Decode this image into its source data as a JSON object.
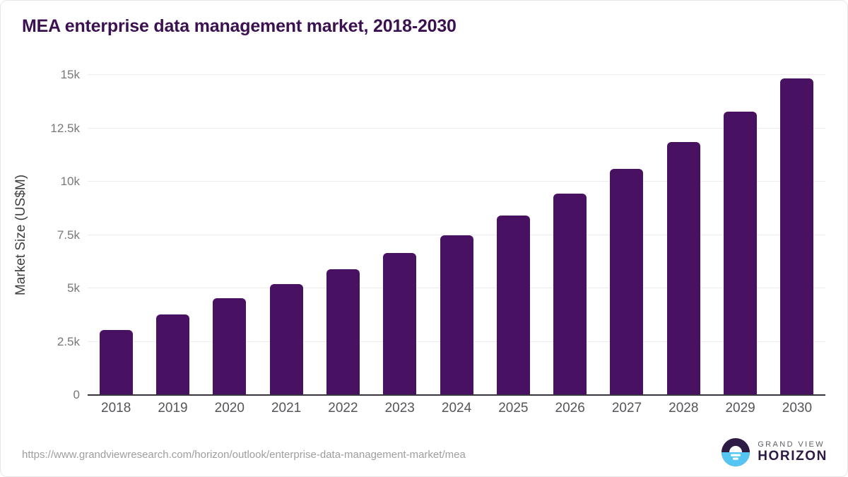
{
  "chart_data": {
    "type": "bar",
    "title": "MEA enterprise data management market, 2018-2030",
    "xlabel": "",
    "ylabel": "Market Size (US$M)",
    "categories": [
      "2018",
      "2019",
      "2020",
      "2021",
      "2022",
      "2023",
      "2024",
      "2025",
      "2026",
      "2027",
      "2028",
      "2029",
      "2030"
    ],
    "values": [
      3060,
      3790,
      4550,
      5190,
      5900,
      6660,
      7490,
      8420,
      9440,
      10600,
      11840,
      13280,
      14850
    ],
    "ylim": [
      0,
      15000
    ],
    "yticks": [
      "0",
      "2.5k",
      "5k",
      "7.5k",
      "10k",
      "12.5k",
      "15k"
    ],
    "ytick_values": [
      0,
      2500,
      5000,
      7500,
      10000,
      12500,
      15000
    ],
    "grid": "horizontal",
    "legend_position": "none",
    "bar_color": "#491161",
    "title_color": "#3b1152"
  },
  "footer": {
    "source_url": "https://www.grandviewresearch.com/horizon/outlook/enterprise-data-management-market/mea",
    "logo": {
      "line1": "GRAND VIEW",
      "line2": "HORIZON",
      "dark_color": "#2d1b45",
      "blue_color": "#55c6f1"
    }
  }
}
